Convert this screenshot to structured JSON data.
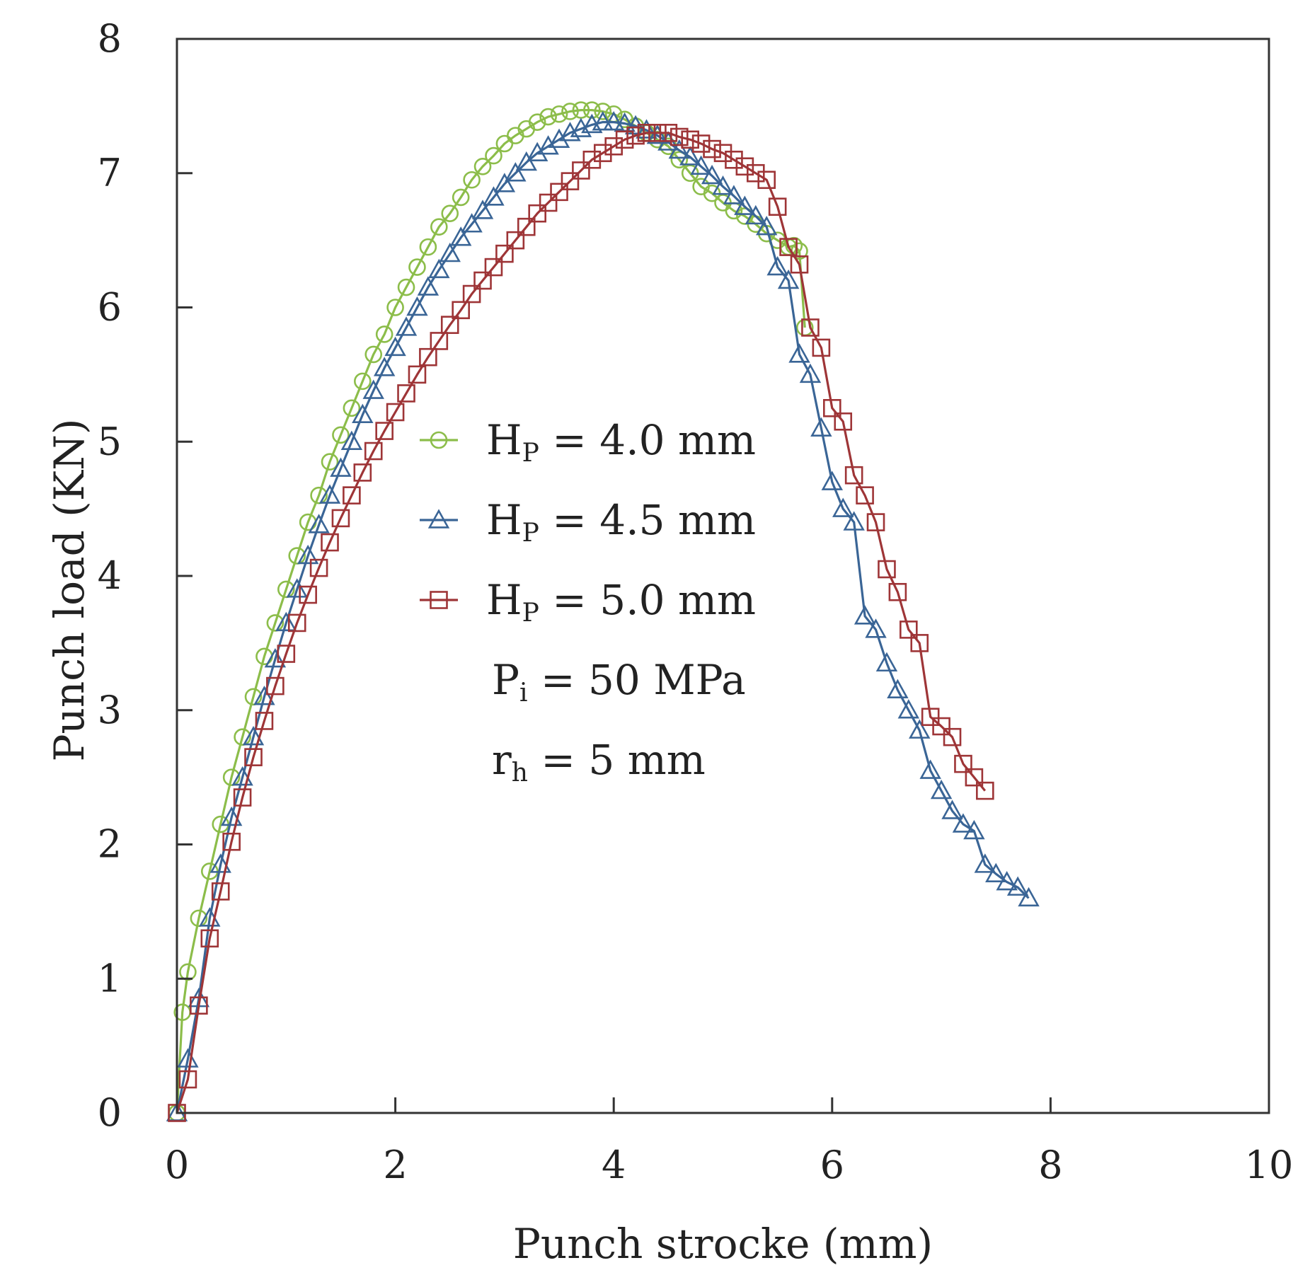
{
  "chart_data": {
    "type": "line",
    "xlabel": "Punch strocke (mm)",
    "ylabel": "Punch load (KN)",
    "xlim": [
      0,
      10
    ],
    "ylim": [
      0,
      8
    ],
    "xticks": [
      "0",
      "2",
      "4",
      "6",
      "8",
      "10"
    ],
    "yticks": [
      "0",
      "1",
      "2",
      "3",
      "4",
      "5",
      "6",
      "7",
      "8"
    ],
    "grid": false,
    "legend_position": "center",
    "legend": [
      {
        "main": "H",
        "sub": "P",
        "suffix": " = 4.0 mm",
        "series": 0
      },
      {
        "main": "H",
        "sub": "P",
        "suffix": " = 4.5 mm",
        "series": 1
      },
      {
        "main": "H",
        "sub": "P",
        "suffix": " = 5.0 mm",
        "series": 2
      }
    ],
    "annotations": [
      {
        "main": "P",
        "sub": "i",
        "suffix": " = 50 MPa"
      },
      {
        "main": "r",
        "sub": "h",
        "suffix": " = 5 mm"
      }
    ],
    "series": [
      {
        "name": "Hp = 4.0 mm",
        "color": "#8cbd4a",
        "marker": "circle",
        "x": [
          0,
          0.05,
          0.1,
          0.2,
          0.3,
          0.4,
          0.5,
          0.6,
          0.7,
          0.8,
          0.9,
          1.0,
          1.1,
          1.2,
          1.3,
          1.4,
          1.5,
          1.6,
          1.7,
          1.8,
          1.9,
          2.0,
          2.1,
          2.2,
          2.3,
          2.4,
          2.5,
          2.6,
          2.7,
          2.8,
          2.9,
          3.0,
          3.1,
          3.2,
          3.3,
          3.4,
          3.5,
          3.6,
          3.7,
          3.8,
          3.9,
          4.0,
          4.1,
          4.2,
          4.3,
          4.4,
          4.5,
          4.6,
          4.7,
          4.8,
          4.9,
          5.0,
          5.1,
          5.2,
          5.3,
          5.4,
          5.5,
          5.6,
          5.65,
          5.7,
          5.75
        ],
        "y": [
          0,
          0.75,
          1.05,
          1.45,
          1.8,
          2.15,
          2.5,
          2.8,
          3.1,
          3.4,
          3.65,
          3.9,
          4.15,
          4.4,
          4.6,
          4.85,
          5.05,
          5.25,
          5.45,
          5.65,
          5.8,
          6.0,
          6.15,
          6.3,
          6.45,
          6.6,
          6.7,
          6.82,
          6.95,
          7.05,
          7.13,
          7.22,
          7.28,
          7.33,
          7.38,
          7.42,
          7.44,
          7.46,
          7.47,
          7.47,
          7.46,
          7.44,
          7.4,
          7.35,
          7.3,
          7.25,
          7.2,
          7.1,
          7.0,
          6.9,
          6.85,
          6.78,
          6.72,
          6.68,
          6.62,
          6.55,
          6.5,
          6.45,
          6.46,
          6.42,
          5.85
        ]
      },
      {
        "name": "Hp = 4.5 mm",
        "color": "#3a6596",
        "marker": "triangle",
        "x": [
          0,
          0.1,
          0.2,
          0.3,
          0.4,
          0.5,
          0.6,
          0.7,
          0.8,
          0.9,
          1.0,
          1.1,
          1.2,
          1.3,
          1.4,
          1.5,
          1.6,
          1.7,
          1.8,
          1.9,
          2.0,
          2.1,
          2.2,
          2.3,
          2.4,
          2.5,
          2.6,
          2.7,
          2.8,
          2.9,
          3.0,
          3.1,
          3.2,
          3.3,
          3.4,
          3.5,
          3.6,
          3.7,
          3.8,
          3.9,
          4.0,
          4.1,
          4.2,
          4.3,
          4.4,
          4.5,
          4.6,
          4.7,
          4.8,
          4.9,
          5.0,
          5.1,
          5.2,
          5.3,
          5.4,
          5.5,
          5.6,
          5.7,
          5.8,
          5.9,
          6.0,
          6.1,
          6.2,
          6.3,
          6.4,
          6.5,
          6.6,
          6.7,
          6.8,
          6.9,
          7.0,
          7.1,
          7.2,
          7.3,
          7.4,
          7.5,
          7.6,
          7.7,
          7.8
        ],
        "y": [
          0,
          0.4,
          0.85,
          1.45,
          1.85,
          2.2,
          2.5,
          2.8,
          3.1,
          3.38,
          3.65,
          3.9,
          4.15,
          4.38,
          4.6,
          4.8,
          5.0,
          5.2,
          5.38,
          5.55,
          5.7,
          5.85,
          6.0,
          6.15,
          6.28,
          6.4,
          6.52,
          6.62,
          6.72,
          6.82,
          6.92,
          7.0,
          7.08,
          7.15,
          7.2,
          7.25,
          7.3,
          7.33,
          7.36,
          7.38,
          7.38,
          7.37,
          7.35,
          7.32,
          7.28,
          7.23,
          7.17,
          7.12,
          7.05,
          6.98,
          6.9,
          6.83,
          6.75,
          6.68,
          6.6,
          6.3,
          6.2,
          5.65,
          5.5,
          5.1,
          4.7,
          4.5,
          4.4,
          3.7,
          3.6,
          3.35,
          3.15,
          3.0,
          2.85,
          2.55,
          2.4,
          2.25,
          2.15,
          2.1,
          1.85,
          1.78,
          1.72,
          1.68,
          1.6
        ]
      },
      {
        "name": "Hp = 5.0 mm",
        "color": "#9e3537",
        "marker": "square",
        "x": [
          0,
          0.1,
          0.2,
          0.3,
          0.4,
          0.5,
          0.6,
          0.7,
          0.8,
          0.9,
          1.0,
          1.1,
          1.2,
          1.3,
          1.4,
          1.5,
          1.6,
          1.7,
          1.8,
          1.9,
          2.0,
          2.1,
          2.2,
          2.3,
          2.4,
          2.5,
          2.6,
          2.7,
          2.8,
          2.9,
          3.0,
          3.1,
          3.2,
          3.3,
          3.4,
          3.5,
          3.6,
          3.7,
          3.8,
          3.9,
          4.0,
          4.1,
          4.2,
          4.3,
          4.4,
          4.5,
          4.6,
          4.7,
          4.8,
          4.9,
          5.0,
          5.1,
          5.2,
          5.3,
          5.4,
          5.5,
          5.6,
          5.7,
          5.8,
          5.9,
          6.0,
          6.1,
          6.2,
          6.3,
          6.4,
          6.5,
          6.6,
          6.7,
          6.8,
          6.9,
          7.0,
          7.1,
          7.2,
          7.3,
          7.4
        ],
        "y": [
          0,
          0.25,
          0.8,
          1.3,
          1.65,
          2.02,
          2.35,
          2.65,
          2.92,
          3.18,
          3.42,
          3.65,
          3.86,
          4.06,
          4.25,
          4.43,
          4.6,
          4.77,
          4.93,
          5.08,
          5.22,
          5.36,
          5.5,
          5.63,
          5.75,
          5.87,
          5.98,
          6.1,
          6.2,
          6.3,
          6.4,
          6.5,
          6.6,
          6.7,
          6.78,
          6.86,
          6.94,
          7.02,
          7.1,
          7.15,
          7.2,
          7.25,
          7.28,
          7.3,
          7.3,
          7.3,
          7.27,
          7.25,
          7.22,
          7.18,
          7.15,
          7.1,
          7.05,
          7.0,
          6.95,
          6.75,
          6.45,
          6.32,
          5.85,
          5.7,
          5.25,
          5.15,
          4.75,
          4.6,
          4.4,
          4.05,
          3.88,
          3.6,
          3.5,
          2.95,
          2.88,
          2.8,
          2.6,
          2.5,
          2.4
        ]
      }
    ]
  }
}
